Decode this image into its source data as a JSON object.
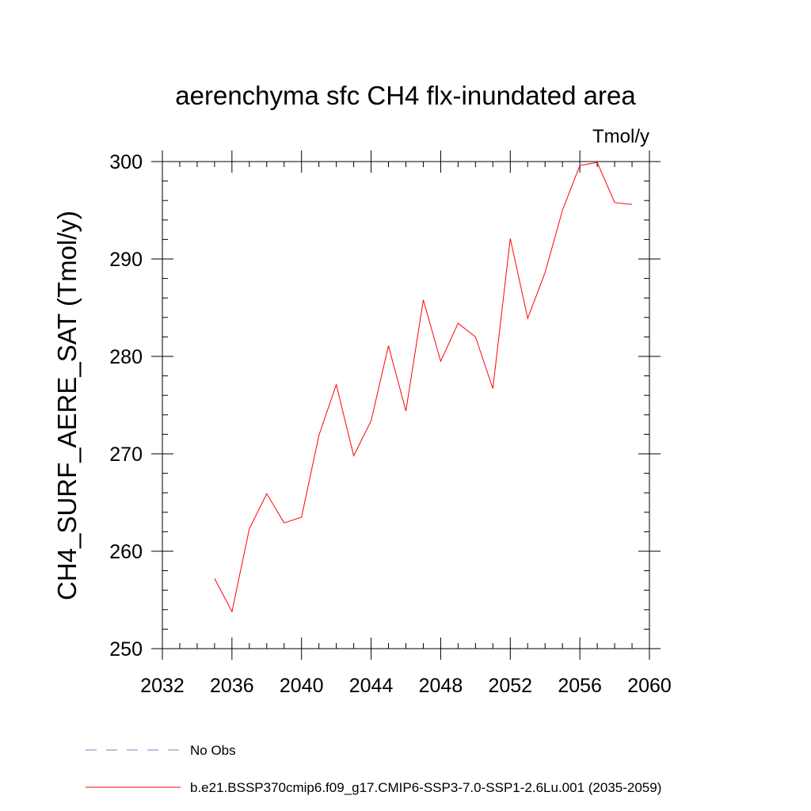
{
  "chart_data": {
    "type": "line",
    "title": "aerenchyma sfc CH4 flx-inundated area",
    "units_label": "Tmol/y",
    "ylabel": "CH4_SURF_AERE_SAT  (Tmol/y)",
    "xlabel": "",
    "xlim": [
      2032,
      2060
    ],
    "ylim": [
      250,
      300
    ],
    "x_ticks": [
      2032,
      2036,
      2040,
      2044,
      2048,
      2052,
      2056,
      2060
    ],
    "y_ticks": [
      250,
      260,
      270,
      280,
      290,
      300
    ],
    "grid": false,
    "series": [
      {
        "name": "b.e21.BSSP370cmip6.f09_g17.CMIP6-SSP3-7.0-SSP1-2.6Lu.001 (2035-2059)",
        "color": "#ff0000",
        "x": [
          2035,
          2036,
          2037,
          2038,
          2039,
          2040,
          2041,
          2042,
          2043,
          2044,
          2045,
          2046,
          2047,
          2048,
          2049,
          2050,
          2051,
          2052,
          2053,
          2054,
          2055,
          2056,
          2057,
          2058,
          2059
        ],
        "y": [
          257.2,
          253.8,
          262.3,
          265.9,
          262.9,
          263.5,
          271.9,
          277.1,
          269.8,
          273.4,
          281.1,
          274.4,
          285.8,
          279.5,
          283.4,
          282.0,
          276.7,
          292.1,
          283.9,
          288.6,
          295.0,
          299.6,
          299.9,
          295.8,
          295.6
        ]
      }
    ],
    "legend": {
      "placement": "bottom",
      "entries": [
        {
          "label": "No Obs",
          "style": "dashed",
          "color": "#8877bb"
        },
        {
          "label": "b.e21.BSSP370cmip6.f09_g17.CMIP6-SSP3-7.0-SSP1-2.6Lu.001 (2035-2059)",
          "style": "solid",
          "color": "#ff0000"
        }
      ]
    }
  }
}
